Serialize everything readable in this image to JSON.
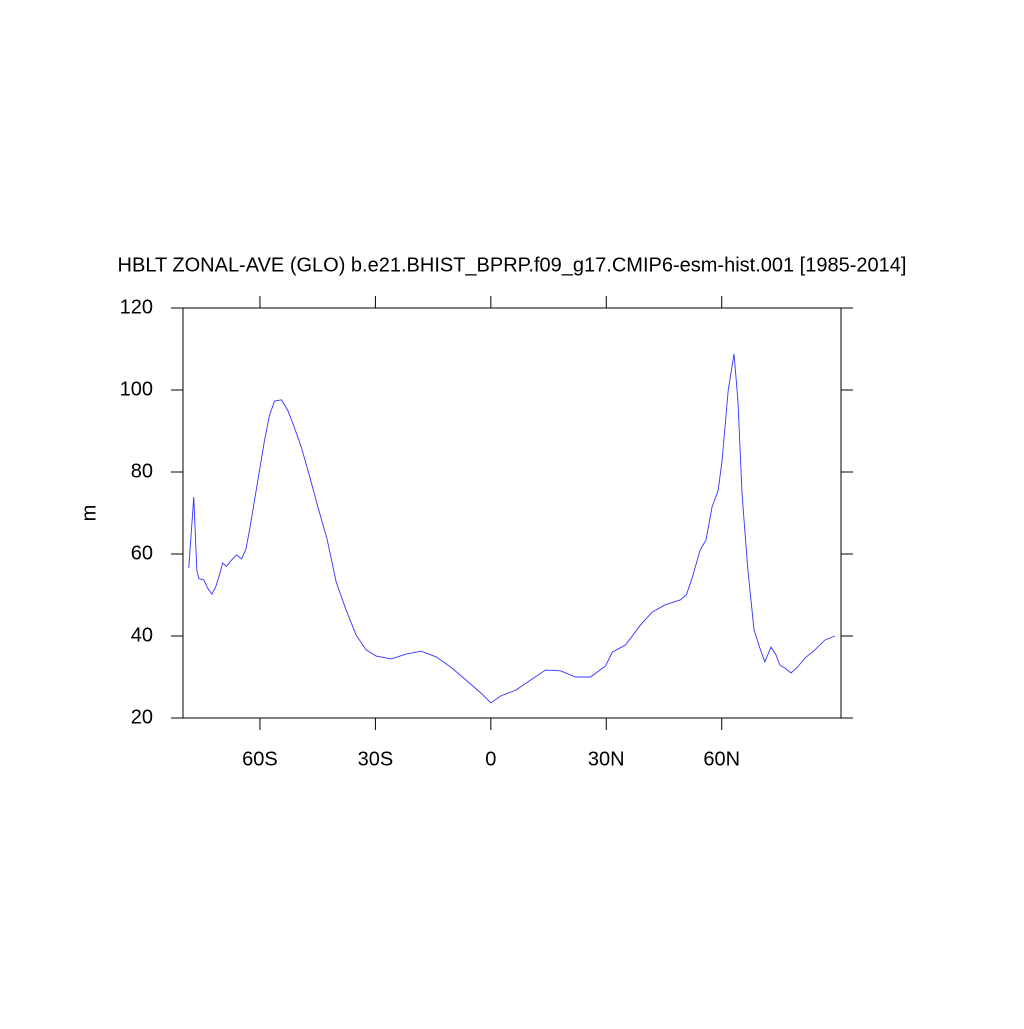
{
  "chart_data": {
    "type": "line",
    "title": "HBLT ZONAL-AVE (GLO) b.e21.BHIST_BPRP.f09_g17.CMIP6-esm-hist.001 [1985-2014]",
    "y_label": "m",
    "x": [
      -78.5,
      -77.2,
      -76.4,
      -75.9,
      -74.6,
      -73.6,
      -72.5,
      -71.5,
      -70.5,
      -69.7,
      -68.7,
      -67.4,
      -66.1,
      -64.8,
      -63.7,
      -62.7,
      -61.4,
      -60.1,
      -58.8,
      -57.5,
      -56.2,
      -54.4,
      -52.8,
      -51.3,
      -49.2,
      -47.2,
      -45.1,
      -42.5,
      -40.2,
      -37.6,
      -35,
      -32.4,
      -29.8,
      -25.9,
      -22,
      -18.1,
      -14.2,
      -10.4,
      -6.5,
      -2.6,
      0,
      2.6,
      6.5,
      10.4,
      14.2,
      18.1,
      22,
      25.9,
      29.8,
      31.6,
      35,
      38.9,
      42,
      45.3,
      49.2,
      50.8,
      52.3,
      54.4,
      55.9,
      57.5,
      59.1,
      60.1,
      61.7,
      63.2,
      64.2,
      65.3,
      66.8,
      68.4,
      69.9,
      71.2,
      72.8,
      74.1,
      75.1,
      76.4,
      78,
      79.5,
      81.6,
      84.2,
      86.8,
      89.4
    ],
    "series": [
      {
        "name": "HBLT",
        "color": "#3333ff",
        "values": [
          56.6,
          73.9,
          56,
          54,
          53.7,
          51.7,
          50.2,
          52,
          55,
          57.8,
          57,
          58.5,
          59.8,
          58.8,
          61,
          65.9,
          73.2,
          80.5,
          87.8,
          93.9,
          97.3,
          97.6,
          95.1,
          91.5,
          85.9,
          79.3,
          72,
          63.4,
          53.2,
          46.3,
          40.2,
          36.6,
          35.1,
          34.4,
          35.6,
          36.3,
          34.9,
          32.4,
          29.3,
          26.1,
          23.7,
          25.4,
          26.8,
          29.3,
          31.7,
          31.5,
          30,
          30,
          32.7,
          36.1,
          37.8,
          42.7,
          45.9,
          47.6,
          48.8,
          50,
          54.1,
          61,
          63.4,
          71.5,
          75.6,
          82.9,
          100,
          108.8,
          97.6,
          74.4,
          56.1,
          41.5,
          37.1,
          33.7,
          37.3,
          35.4,
          32.9,
          32.2,
          31,
          32.2,
          34.6,
          36.6,
          39,
          40
        ]
      }
    ],
    "xlim": [
      -80,
      91
    ],
    "xticks": [
      {
        "value": -60,
        "label": "60S"
      },
      {
        "value": -30,
        "label": "30S"
      },
      0,
      {
        "value": 30,
        "label": "30N"
      },
      {
        "value": 60,
        "label": "60N"
      }
    ],
    "ylim": [
      20,
      120
    ],
    "yticks": [
      20,
      40,
      60,
      80,
      100,
      120
    ]
  }
}
